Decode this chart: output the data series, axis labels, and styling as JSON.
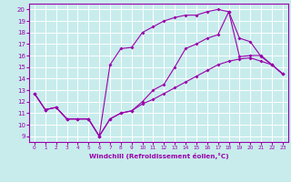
{
  "xlabel": "Windchill (Refroidissement éolien,°C)",
  "bg_color": "#c8ecec",
  "grid_color": "#ffffff",
  "line_color": "#9900aa",
  "xlim": [
    -0.5,
    23.5
  ],
  "ylim": [
    8.5,
    20.5
  ],
  "xticks": [
    0,
    1,
    2,
    3,
    4,
    5,
    6,
    7,
    8,
    9,
    10,
    11,
    12,
    13,
    14,
    15,
    16,
    17,
    18,
    19,
    20,
    21,
    22,
    23
  ],
  "yticks": [
    9,
    10,
    11,
    12,
    13,
    14,
    15,
    16,
    17,
    18,
    19,
    20
  ],
  "series1_x": [
    0,
    1,
    2,
    3,
    4,
    5,
    6,
    7,
    8,
    9,
    10,
    11,
    12,
    13,
    14,
    15,
    16,
    17,
    18,
    19,
    20,
    21,
    22,
    23
  ],
  "series1_y": [
    12.7,
    11.3,
    11.5,
    10.5,
    10.5,
    10.5,
    9.0,
    10.5,
    11.0,
    11.2,
    11.8,
    12.2,
    12.7,
    13.2,
    13.7,
    14.2,
    14.7,
    15.2,
    15.5,
    15.7,
    15.8,
    15.5,
    15.2,
    14.4
  ],
  "series2_x": [
    0,
    1,
    2,
    3,
    4,
    5,
    6,
    7,
    8,
    9,
    10,
    11,
    12,
    13,
    14,
    15,
    16,
    17,
    18,
    19,
    20,
    21,
    22,
    23
  ],
  "series2_y": [
    12.7,
    11.3,
    11.5,
    10.5,
    10.5,
    10.5,
    9.0,
    15.2,
    16.6,
    16.7,
    18.0,
    18.5,
    19.0,
    19.3,
    19.5,
    19.5,
    19.8,
    20.0,
    19.8,
    17.5,
    17.2,
    15.9,
    15.2,
    14.4
  ],
  "series3_x": [
    0,
    1,
    2,
    3,
    4,
    5,
    6,
    7,
    8,
    9,
    10,
    11,
    12,
    13,
    14,
    15,
    16,
    17,
    18,
    19,
    20,
    21,
    22,
    23
  ],
  "series3_y": [
    12.7,
    11.3,
    11.5,
    10.5,
    10.5,
    10.5,
    9.0,
    10.5,
    11.0,
    11.2,
    12.0,
    13.0,
    13.5,
    15.0,
    16.6,
    17.0,
    17.5,
    17.8,
    19.8,
    15.9,
    16.0,
    16.0,
    15.2,
    14.4
  ]
}
